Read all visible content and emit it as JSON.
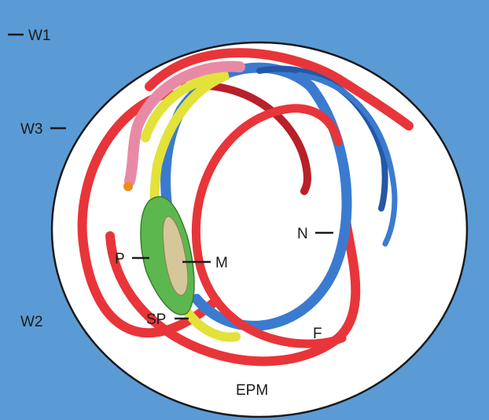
{
  "labels": {
    "w1": "W1",
    "w2": "W2",
    "w3": "W3",
    "p": "P",
    "m": "M",
    "sp": "SP",
    "n": "N",
    "f": "F",
    "epm": "EPM"
  },
  "colors": {
    "background": "#5b9bd5",
    "egg_fill": "#ffffff",
    "outline": "#1a1a1a",
    "red_strand": "#e8353a",
    "red_strand_shade": "#b8202a",
    "blue_strand": "#3a7bd0",
    "blue_strand_shade": "#2458a6",
    "yellow_strand": "#e3e23a",
    "pink_tip": "#e88aa6",
    "green_mass": "#5cb84e",
    "tan_core": "#d6c79a",
    "orange_tip": "#f08a1c"
  }
}
